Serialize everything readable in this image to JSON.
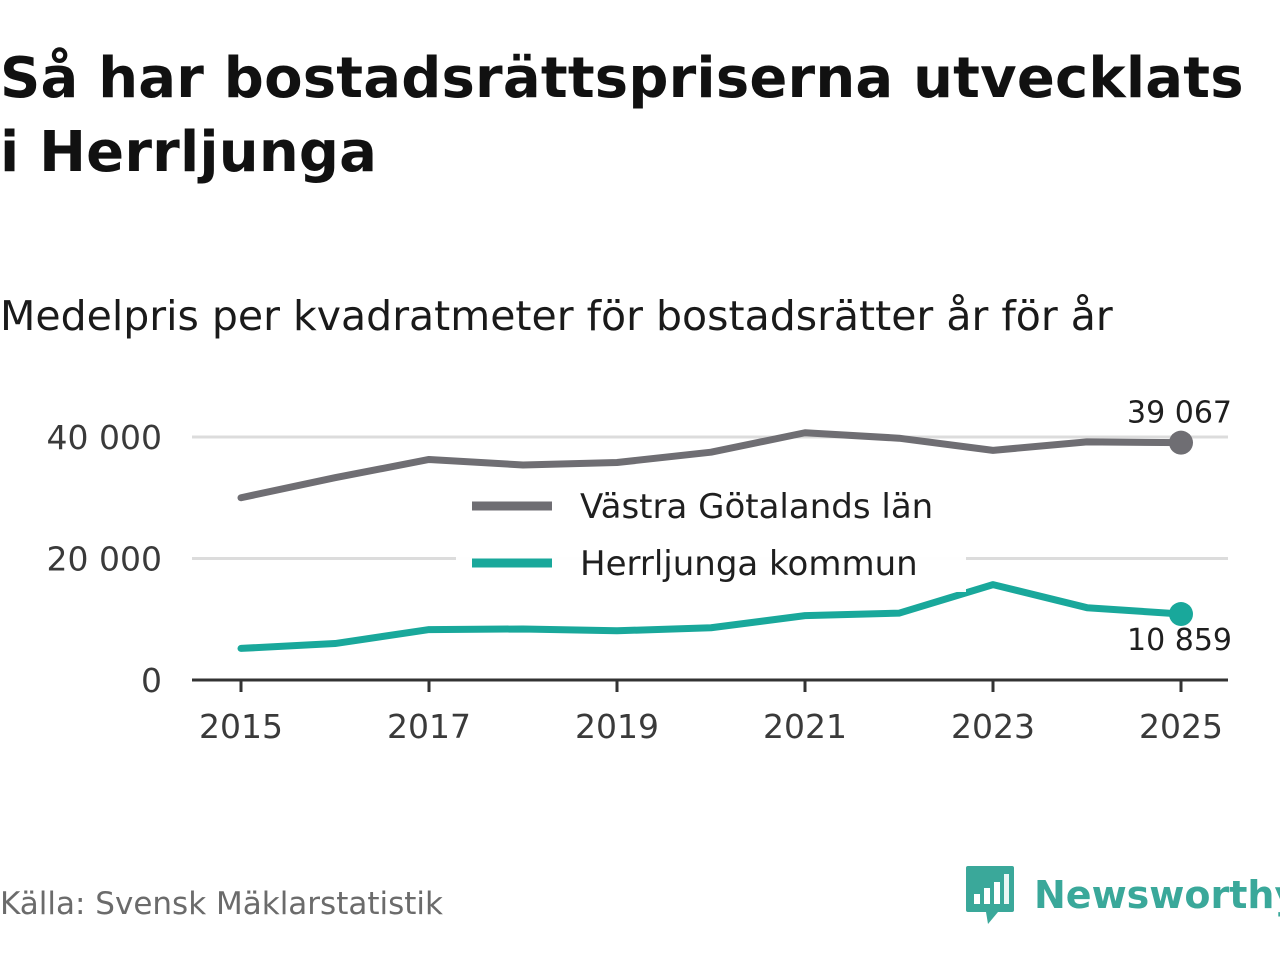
{
  "title": "Så har bostadsrättspriserna utvecklats i Herrljunga",
  "subtitle": "Medelpris per kvadratmeter för bostadsrätter år för år",
  "source": "Källa: Svensk Mäklarstatistik",
  "brand": {
    "name": "Newsworthy",
    "icon": "newsworthy-logo-icon",
    "color": "#3aa89a"
  },
  "chart_data": {
    "type": "line",
    "title": "Så har bostadsrättspriserna utvecklats i Herrljunga",
    "subtitle": "Medelpris per kvadratmeter för bostadsrätter år för år",
    "xlabel": "",
    "ylabel": "",
    "x": [
      2015,
      2016,
      2017,
      2018,
      2019,
      2020,
      2021,
      2022,
      2023,
      2024,
      2025
    ],
    "xticks": [
      "2015",
      "2017",
      "2019",
      "2021",
      "2023",
      "2025"
    ],
    "yticks": [
      {
        "value": 0,
        "label": "0"
      },
      {
        "value": 20000,
        "label": "20 000"
      },
      {
        "value": 40000,
        "label": "40 000"
      }
    ],
    "ylim": [
      0,
      40000
    ],
    "grid": true,
    "legend_position": "center",
    "series": [
      {
        "name": "Västra Götalands län",
        "color": "#6f6e73",
        "values": [
          30000,
          33300,
          36300,
          35400,
          35800,
          37500,
          40700,
          39800,
          37800,
          39200,
          39067
        ],
        "end_label": "39 067",
        "end_label_position": "above"
      },
      {
        "name": "Herrljunga kommun",
        "color": "#19a89b",
        "values": [
          5200,
          6000,
          8300,
          8400,
          8100,
          8600,
          10600,
          11000,
          15700,
          11900,
          10859
        ],
        "end_label": "10 859",
        "end_label_position": "below"
      }
    ]
  }
}
